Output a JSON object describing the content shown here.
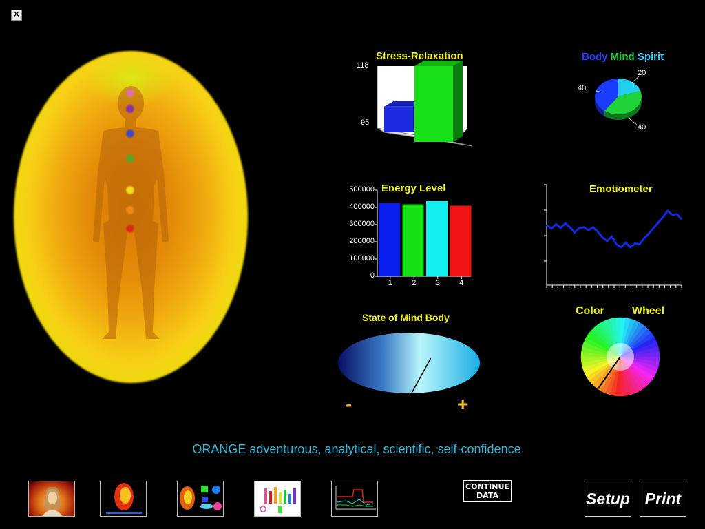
{
  "window": {
    "close_glyph": "✕"
  },
  "aura": {
    "chakra_colors": [
      "#e070a8",
      "#8a2fb0",
      "#3d45c8",
      "#54a828",
      "#f0e020",
      "#f08818",
      "#e02818"
    ]
  },
  "stress_relaxation": {
    "title": "Stress-Relaxation",
    "ymax_label": "118",
    "ymin_label": "95"
  },
  "body_mind_spirit": {
    "title_body": "Body",
    "title_mind": "Mind",
    "title_spirit": "Spirit",
    "colors": {
      "body": "#1a3cff",
      "mind": "#1ed43a",
      "spirit": "#22d0ee"
    },
    "label_spirit": "20",
    "label_body": "40",
    "label_mind": "40"
  },
  "energy_level": {
    "title": "Energy Level",
    "y_ticks": [
      "500000",
      "400000",
      "300000",
      "200000",
      "100000",
      "0"
    ]
  },
  "emotiometer": {
    "title": "Emotiometer"
  },
  "state_of_mind_body": {
    "title": "State of Mind Body",
    "minus": "-",
    "plus": "+"
  },
  "color_wheel": {
    "title_left": "Color",
    "title_right": "Wheel"
  },
  "aura_description": "ORANGE adventurous, analytical, scientific, self-confidence",
  "toolbar": {
    "continue_line1": "CONTINUE",
    "continue_line2": "DATA",
    "setup_label": "Setup",
    "print_label": "Print"
  },
  "chart_data": [
    {
      "type": "bar",
      "title": "Stress-Relaxation",
      "categories": [
        "Stress",
        "Relaxation"
      ],
      "values": [
        103,
        118
      ],
      "colors": [
        "#1a2be0",
        "#18e018"
      ],
      "ylim": [
        95,
        118
      ]
    },
    {
      "type": "pie",
      "title": "Body Mind Spirit",
      "categories": [
        "Spirit",
        "Mind",
        "Body"
      ],
      "values": [
        20,
        40,
        40
      ]
    },
    {
      "type": "bar",
      "title": "Energy Level",
      "categories": [
        "1",
        "2",
        "3",
        "4"
      ],
      "values": [
        425000,
        418000,
        436000,
        410000
      ],
      "colors": [
        "#0a1ef0",
        "#14e014",
        "#14f0f0",
        "#f01414"
      ],
      "ylim": [
        0,
        500000
      ]
    },
    {
      "type": "line",
      "title": "Emotiometer",
      "values": [
        78,
        73,
        79,
        74,
        80,
        75,
        68,
        74,
        75,
        71,
        75,
        69,
        62,
        57,
        63,
        53,
        49,
        55,
        49,
        54,
        53,
        61,
        67,
        74,
        81,
        88,
        96,
        91,
        92,
        85
      ],
      "ylim": [
        0,
        130
      ]
    },
    {
      "type": "gauge",
      "title": "State of Mind Body",
      "value": 0.6,
      "range": [
        -1,
        1
      ]
    },
    {
      "type": "gauge",
      "title": "Color Wheel",
      "pointer_angle_deg": 235
    }
  ]
}
